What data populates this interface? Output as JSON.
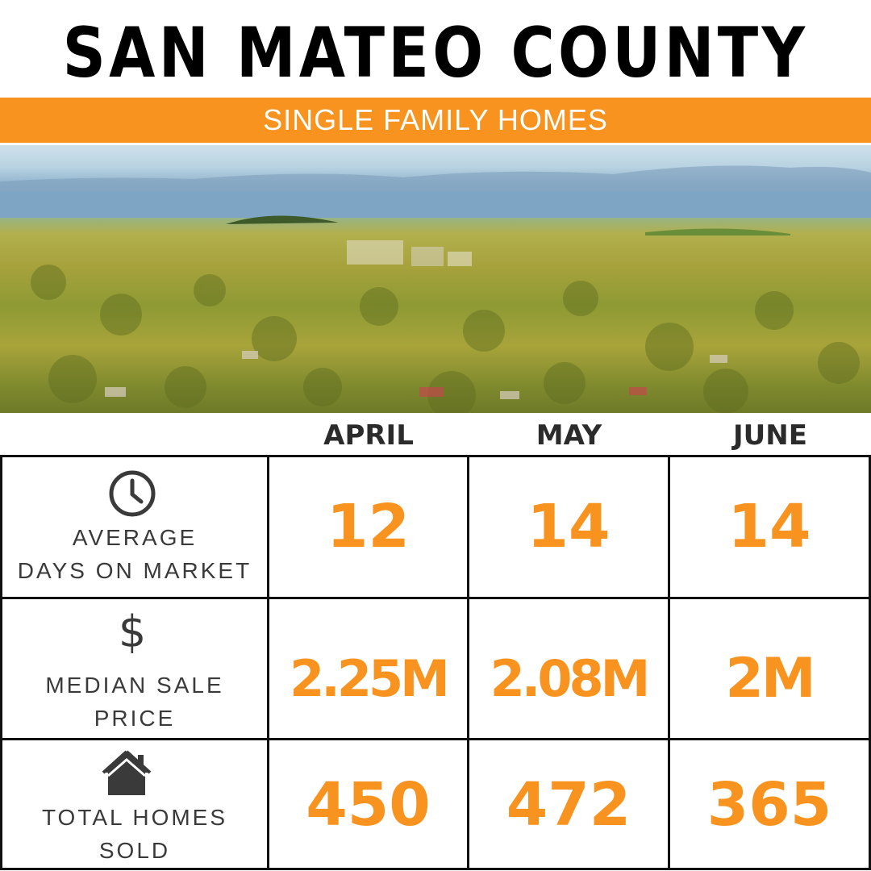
{
  "title": "SAN MATEO COUNTY",
  "subtitle": "SINGLE FAMILY HOMES",
  "colors": {
    "accent": "#f7931e",
    "text": "#3a3a3a",
    "grid": "#111111"
  },
  "columns": [
    "APRIL",
    "MAY",
    "JUNE"
  ],
  "rows": [
    {
      "icon": "clock-icon",
      "label_line1": "AVERAGE",
      "label_line2": "DAYS ON MARKET",
      "values": [
        "12",
        "14",
        "14"
      ]
    },
    {
      "icon": "dollar-icon",
      "label_line1": "MEDIAN SALE",
      "label_line2": "PRICE",
      "values": [
        "2.25M",
        "2.08M",
        "2M"
      ]
    },
    {
      "icon": "house-icon",
      "label_line1": "TOTAL HOMES",
      "label_line2": "SOLD",
      "values": [
        "450",
        "472",
        "365"
      ]
    }
  ]
}
